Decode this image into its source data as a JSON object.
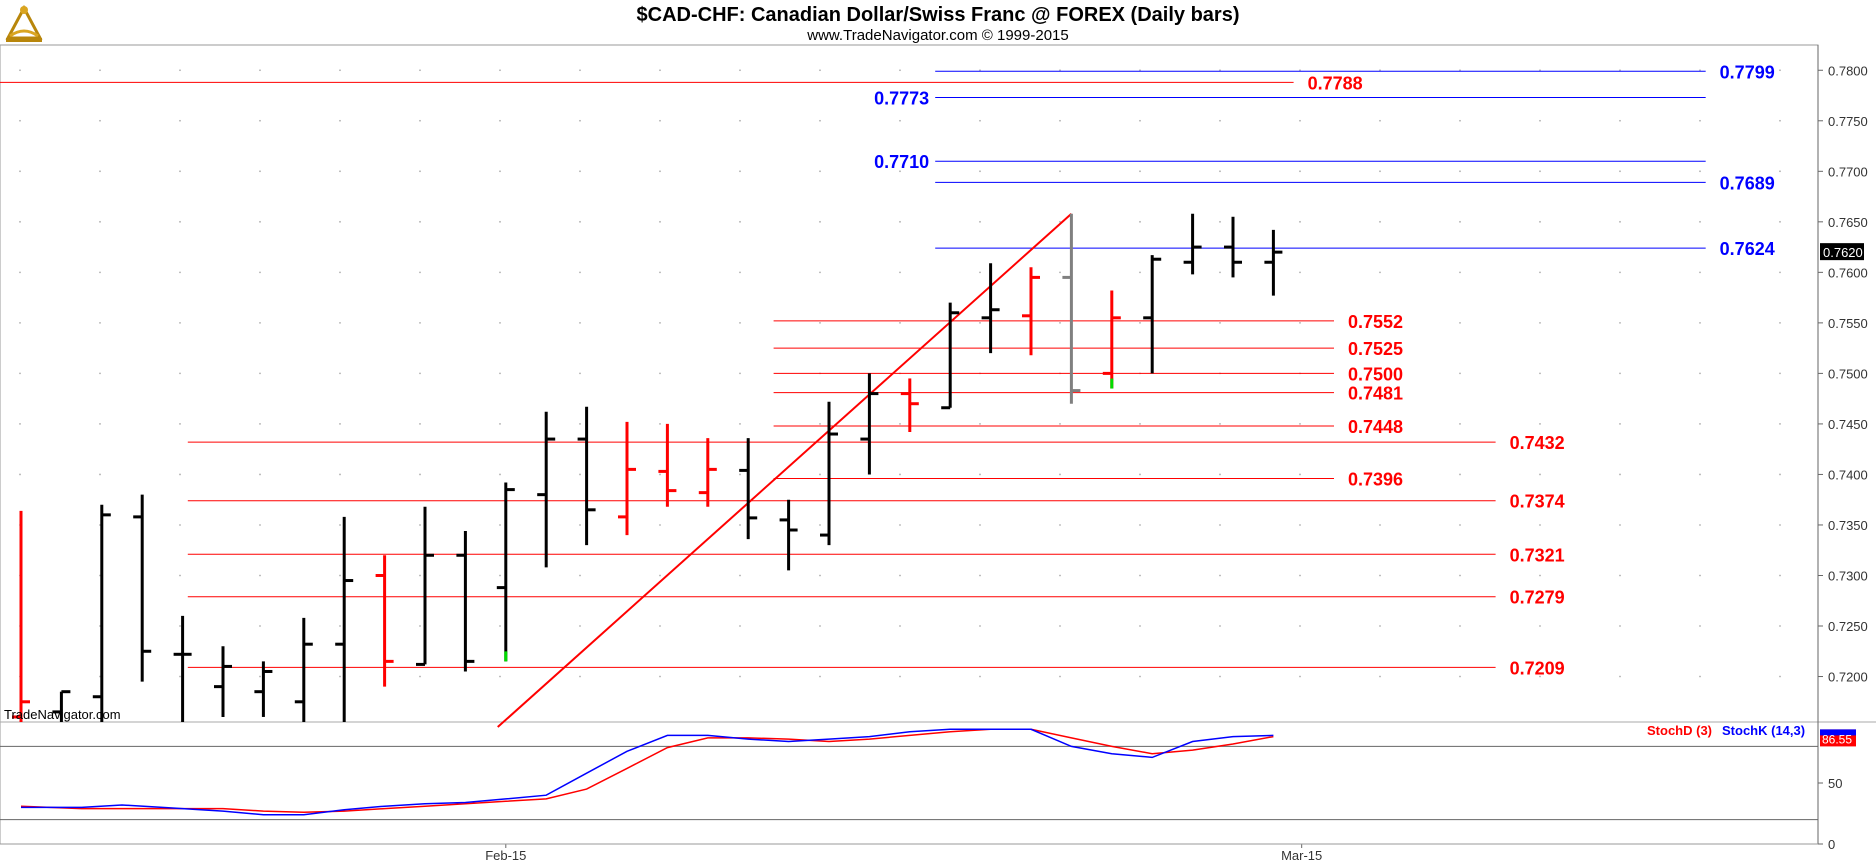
{
  "title": "$CAD-CHF:  Canadian Dollar/Swiss Franc @ FOREX  (Daily bars)",
  "subtitle": "www.TradeNavigator.com © 1999-2015",
  "watermark": "TradeNavigator.com",
  "colors": {
    "up": "#000000",
    "down": "#ff0000",
    "neutral": "#808080",
    "green": "#00dd00",
    "blue_level": "#0000ff",
    "red_level": "#ff0000",
    "stoch_d": "#ff0000",
    "stoch_k": "#0000ff"
  },
  "chart_data": {
    "type": "ohlc",
    "price_axis": {
      "ylim": [
        0.7155,
        0.7825
      ],
      "ticks": [
        "0.7800",
        "0.7750",
        "0.7700",
        "0.7650",
        "0.7600",
        "0.7550",
        "0.7500",
        "0.7450",
        "0.7400",
        "0.7350",
        "0.7300",
        "0.7250",
        "0.7200"
      ],
      "last_price": "0.7620"
    },
    "x_labels": [
      "Feb-15",
      "Mar-15"
    ],
    "bars": [
      {
        "o": 0.716,
        "h": 0.7364,
        "l": 0.715,
        "c": 0.7175,
        "color": "down"
      },
      {
        "o": 0.7165,
        "h": 0.7185,
        "l": 0.715,
        "c": 0.7185,
        "color": "up"
      },
      {
        "o": 0.718,
        "h": 0.737,
        "l": 0.715,
        "c": 0.736,
        "color": "up"
      },
      {
        "o": 0.7358,
        "h": 0.738,
        "l": 0.7195,
        "c": 0.7225,
        "color": "up"
      },
      {
        "o": 0.7222,
        "h": 0.726,
        "l": 0.715,
        "c": 0.7222,
        "color": "up"
      },
      {
        "o": 0.719,
        "h": 0.723,
        "l": 0.716,
        "c": 0.721,
        "color": "up"
      },
      {
        "o": 0.7185,
        "h": 0.7215,
        "l": 0.716,
        "c": 0.7205,
        "color": "up"
      },
      {
        "o": 0.7175,
        "h": 0.7258,
        "l": 0.715,
        "c": 0.7232,
        "color": "up"
      },
      {
        "o": 0.7232,
        "h": 0.7358,
        "l": 0.715,
        "c": 0.7295,
        "color": "up"
      },
      {
        "o": 0.73,
        "h": 0.732,
        "l": 0.719,
        "c": 0.7215,
        "color": "down"
      },
      {
        "o": 0.7212,
        "h": 0.7368,
        "l": 0.7212,
        "c": 0.732,
        "color": "up"
      },
      {
        "o": 0.732,
        "h": 0.7344,
        "l": 0.7205,
        "c": 0.7215,
        "color": "up"
      },
      {
        "o": 0.7288,
        "h": 0.7392,
        "l": 0.7215,
        "c": 0.7385,
        "color": "up",
        "low_tail": "green"
      },
      {
        "o": 0.738,
        "h": 0.7462,
        "l": 0.7308,
        "c": 0.7435,
        "color": "up"
      },
      {
        "o": 0.7435,
        "h": 0.7467,
        "l": 0.733,
        "c": 0.7365,
        "color": "up"
      },
      {
        "o": 0.7358,
        "h": 0.7452,
        "l": 0.734,
        "c": 0.7405,
        "color": "down"
      },
      {
        "o": 0.7403,
        "h": 0.745,
        "l": 0.7368,
        "c": 0.7384,
        "color": "down"
      },
      {
        "o": 0.7382,
        "h": 0.7436,
        "l": 0.7368,
        "c": 0.7405,
        "color": "down"
      },
      {
        "o": 0.7404,
        "h": 0.7436,
        "l": 0.7336,
        "c": 0.7357,
        "color": "up"
      },
      {
        "o": 0.7355,
        "h": 0.7375,
        "l": 0.7305,
        "c": 0.7345,
        "color": "up"
      },
      {
        "o": 0.734,
        "h": 0.7472,
        "l": 0.733,
        "c": 0.744,
        "color": "up"
      },
      {
        "o": 0.7435,
        "h": 0.75,
        "l": 0.74,
        "c": 0.748,
        "color": "up"
      },
      {
        "o": 0.748,
        "h": 0.7495,
        "l": 0.7442,
        "c": 0.747,
        "color": "down"
      },
      {
        "o": 0.7466,
        "h": 0.757,
        "l": 0.7466,
        "c": 0.756,
        "color": "up"
      },
      {
        "o": 0.7555,
        "h": 0.7609,
        "l": 0.752,
        "c": 0.7563,
        "color": "up"
      },
      {
        "o": 0.7557,
        "h": 0.7605,
        "l": 0.7518,
        "c": 0.7595,
        "color": "down"
      },
      {
        "o": 0.7595,
        "h": 0.7658,
        "l": 0.747,
        "c": 0.7483,
        "color": "neutral"
      },
      {
        "o": 0.75,
        "h": 0.7582,
        "l": 0.7485,
        "c": 0.7555,
        "color": "down",
        "low_tail": "green"
      },
      {
        "o": 0.7555,
        "h": 0.7617,
        "l": 0.75,
        "c": 0.7613,
        "color": "up"
      },
      {
        "o": 0.761,
        "h": 0.7658,
        "l": 0.7598,
        "c": 0.7625,
        "color": "up"
      },
      {
        "o": 0.7625,
        "h": 0.7655,
        "l": 0.7595,
        "c": 0.761,
        "color": "up"
      },
      {
        "o": 0.761,
        "h": 0.7642,
        "l": 0.7577,
        "c": 0.762,
        "color": "up"
      }
    ],
    "trendline": {
      "from_bar": 11.8,
      "from_price": 0.715,
      "to_bar": 26,
      "to_price": 0.7658,
      "color": "red"
    },
    "levels": [
      {
        "label": "0.7799",
        "value": 0.7799,
        "color": "blue",
        "from_bar": 23,
        "to_bar": 41.7,
        "label_side": "right-far"
      },
      {
        "label": "0.7788",
        "value": 0.7788,
        "color": "red",
        "from_bar": -0.5,
        "to_bar": 31.5,
        "label_side": "right"
      },
      {
        "label": "0.7773",
        "value": 0.7773,
        "color": "blue",
        "from_bar": 23,
        "to_bar": 41.7,
        "label_side": "left"
      },
      {
        "label": "0.7710",
        "value": 0.771,
        "color": "blue",
        "from_bar": 23,
        "to_bar": 41.7,
        "label_side": "left"
      },
      {
        "label": "0.7689",
        "value": 0.7689,
        "color": "blue",
        "from_bar": 23,
        "to_bar": 41.7,
        "label_side": "right-far"
      },
      {
        "label": "0.7624",
        "value": 0.7624,
        "color": "blue",
        "from_bar": 23,
        "to_bar": 41.7,
        "label_side": "right-far"
      },
      {
        "label": "0.7552",
        "value": 0.7552,
        "color": "red",
        "from_bar": 19,
        "to_bar": 32.5,
        "label_side": "right"
      },
      {
        "label": "0.7525",
        "value": 0.7525,
        "color": "red",
        "from_bar": 19,
        "to_bar": 32.5,
        "label_side": "right"
      },
      {
        "label": "0.7500",
        "value": 0.75,
        "color": "red",
        "from_bar": 19,
        "to_bar": 32.5,
        "label_side": "right"
      },
      {
        "label": "0.7481",
        "value": 0.7481,
        "color": "red",
        "from_bar": 19,
        "to_bar": 32.5,
        "label_side": "right"
      },
      {
        "label": "0.7448",
        "value": 0.7448,
        "color": "red",
        "from_bar": 19,
        "to_bar": 32.5,
        "label_side": "right"
      },
      {
        "label": "0.7432",
        "value": 0.7432,
        "color": "red",
        "from_bar": 4.5,
        "to_bar": 36.5,
        "label_side": "right"
      },
      {
        "label": "0.7396",
        "value": 0.7396,
        "color": "red",
        "from_bar": 19,
        "to_bar": 32.5,
        "label_side": "right"
      },
      {
        "label": "0.7374",
        "value": 0.7374,
        "color": "red",
        "from_bar": 4.5,
        "to_bar": 36.5,
        "label_side": "right"
      },
      {
        "label": "0.7321",
        "value": 0.7321,
        "color": "red",
        "from_bar": 4.5,
        "to_bar": 36.5,
        "label_side": "right"
      },
      {
        "label": "0.7279",
        "value": 0.7279,
        "color": "red",
        "from_bar": 4.5,
        "to_bar": 36.5,
        "label_side": "right"
      },
      {
        "label": "0.7209",
        "value": 0.7209,
        "color": "red",
        "from_bar": 4.5,
        "to_bar": 36.5,
        "label_side": "right"
      }
    ],
    "stochastic": {
      "legend_d": "StochD (3)",
      "legend_k": "StochK (14,3)",
      "last_value": "86.55",
      "ticks": [
        "50",
        "0"
      ],
      "ref_lines": [
        80,
        20
      ],
      "ylim": [
        0,
        100
      ],
      "k": [
        {
          "bar": 0,
          "v": 30
        },
        {
          "bar": 1.5,
          "v": 30
        },
        {
          "bar": 2.5,
          "v": 32
        },
        {
          "bar": 3.5,
          "v": 30
        },
        {
          "bar": 5,
          "v": 27
        },
        {
          "bar": 6,
          "v": 24
        },
        {
          "bar": 7,
          "v": 24
        },
        {
          "bar": 8,
          "v": 28
        },
        {
          "bar": 9,
          "v": 31
        },
        {
          "bar": 10,
          "v": 33
        },
        {
          "bar": 11,
          "v": 34
        },
        {
          "bar": 12,
          "v": 37
        },
        {
          "bar": 13,
          "v": 40
        },
        {
          "bar": 14,
          "v": 58
        },
        {
          "bar": 15,
          "v": 76
        },
        {
          "bar": 16,
          "v": 89
        },
        {
          "bar": 17,
          "v": 89
        },
        {
          "bar": 18,
          "v": 86
        },
        {
          "bar": 19,
          "v": 84
        },
        {
          "bar": 20,
          "v": 86
        },
        {
          "bar": 21,
          "v": 88
        },
        {
          "bar": 22,
          "v": 92
        },
        {
          "bar": 23,
          "v": 94
        },
        {
          "bar": 24,
          "v": 94
        },
        {
          "bar": 25,
          "v": 94
        },
        {
          "bar": 26,
          "v": 80
        },
        {
          "bar": 27,
          "v": 74
        },
        {
          "bar": 28,
          "v": 71
        },
        {
          "bar": 29,
          "v": 84
        },
        {
          "bar": 30,
          "v": 88
        },
        {
          "bar": 31,
          "v": 89
        }
      ],
      "d": [
        {
          "bar": 0,
          "v": 31
        },
        {
          "bar": 1.5,
          "v": 29
        },
        {
          "bar": 2.5,
          "v": 29
        },
        {
          "bar": 3.5,
          "v": 29
        },
        {
          "bar": 5,
          "v": 29
        },
        {
          "bar": 6,
          "v": 27
        },
        {
          "bar": 7,
          "v": 26
        },
        {
          "bar": 8,
          "v": 27
        },
        {
          "bar": 9,
          "v": 29
        },
        {
          "bar": 10,
          "v": 31
        },
        {
          "bar": 11,
          "v": 33
        },
        {
          "bar": 12,
          "v": 35
        },
        {
          "bar": 13,
          "v": 37
        },
        {
          "bar": 14,
          "v": 45
        },
        {
          "bar": 15,
          "v": 62
        },
        {
          "bar": 16,
          "v": 79
        },
        {
          "bar": 17,
          "v": 87
        },
        {
          "bar": 18,
          "v": 87
        },
        {
          "bar": 19,
          "v": 86
        },
        {
          "bar": 20,
          "v": 84
        },
        {
          "bar": 21,
          "v": 86
        },
        {
          "bar": 22,
          "v": 89
        },
        {
          "bar": 23,
          "v": 92
        },
        {
          "bar": 24,
          "v": 94
        },
        {
          "bar": 25,
          "v": 94
        },
        {
          "bar": 26,
          "v": 87
        },
        {
          "bar": 27,
          "v": 80
        },
        {
          "bar": 28,
          "v": 74
        },
        {
          "bar": 29,
          "v": 77
        },
        {
          "bar": 30,
          "v": 82
        },
        {
          "bar": 31,
          "v": 88
        }
      ]
    }
  }
}
